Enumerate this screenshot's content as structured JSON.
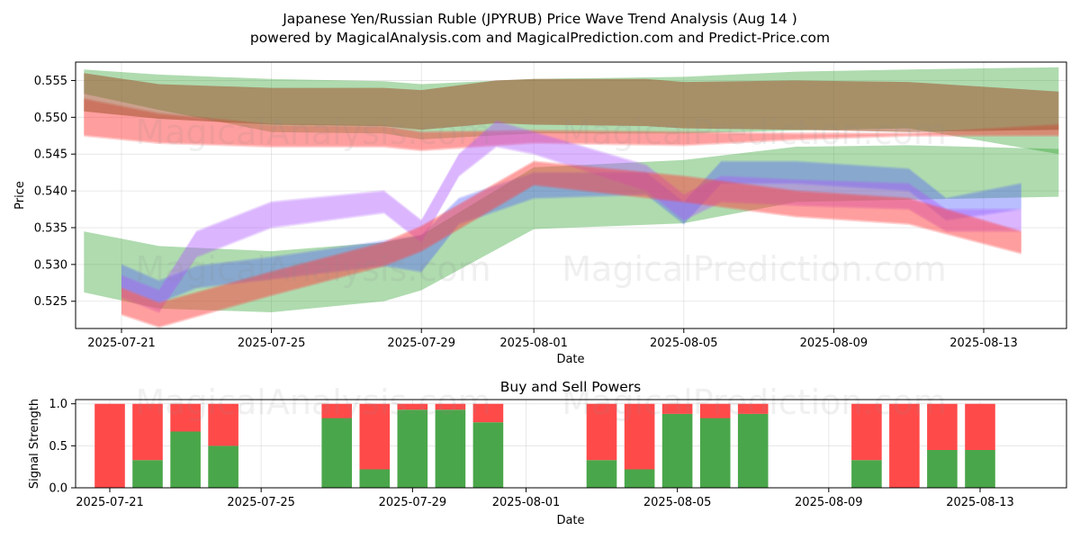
{
  "title_line1": "Japanese Yen/Russian Ruble (JPYRUB) Price Wave Trend Analysis (Aug 14 )",
  "title_line2": "powered by MagicalAnalysis.com and MagicalPrediction.com and Predict-Price.com",
  "watermarks": [
    "MagicalAnalysis.com",
    "MagicalPrediction.com"
  ],
  "colors": {
    "green": "#2ca02c",
    "red": "#ff4444",
    "blue": "#4f5bff",
    "purple": "#b05cff",
    "brown": "#a0522d",
    "bar_green": "#4aa64a",
    "bar_red": "#ff4a4a"
  },
  "chart_data": [
    {
      "type": "area",
      "xlabel": "Date",
      "ylabel": "Price",
      "ylim": [
        0.5213,
        0.5575
      ],
      "xlim": [
        "2025-07-20",
        "2025-08-15"
      ],
      "x_ticks": [
        "2025-07-21",
        "2025-07-25",
        "2025-07-29",
        "2025-08-01",
        "2025-08-05",
        "2025-08-09",
        "2025-08-13"
      ],
      "y_ticks": [
        "0.525",
        "0.530",
        "0.535",
        "0.540",
        "0.545",
        "0.550",
        "0.555"
      ],
      "grid": true,
      "series": [
        {
          "color": "green",
          "x": [
            "2025-07-20",
            "2025-07-22",
            "2025-07-25",
            "2025-07-28",
            "2025-07-29",
            "2025-08-01",
            "2025-08-05",
            "2025-08-08",
            "2025-08-11",
            "2025-08-15"
          ],
          "upper": [
            0.5565,
            0.5558,
            0.5552,
            0.5549,
            0.5545,
            0.5552,
            0.5555,
            0.5562,
            0.5565,
            0.5568
          ],
          "lower": [
            0.5532,
            0.551,
            0.548,
            0.5478,
            0.547,
            0.5478,
            0.5478,
            0.5482,
            0.5485,
            0.545
          ]
        },
        {
          "color": "red",
          "x": [
            "2025-07-20",
            "2025-07-22",
            "2025-07-25",
            "2025-07-28",
            "2025-07-29",
            "2025-08-01",
            "2025-08-05",
            "2025-08-08",
            "2025-08-11",
            "2025-08-15"
          ],
          "upper": [
            0.5525,
            0.5505,
            0.549,
            0.5488,
            0.548,
            0.5482,
            0.548,
            0.5478,
            0.5478,
            0.549
          ],
          "lower": [
            0.5475,
            0.5465,
            0.546,
            0.546,
            0.5455,
            0.5465,
            0.5462,
            0.547,
            0.5475,
            0.5475
          ]
        },
        {
          "color": "brown",
          "x": [
            "2025-07-20",
            "2025-07-22",
            "2025-07-25",
            "2025-07-28",
            "2025-07-29",
            "2025-07-31",
            "2025-08-01",
            "2025-08-04",
            "2025-08-05",
            "2025-08-08",
            "2025-08-11",
            "2025-08-15"
          ],
          "upper": [
            0.556,
            0.5545,
            0.554,
            0.554,
            0.5537,
            0.555,
            0.5552,
            0.5552,
            0.5548,
            0.555,
            0.5548,
            0.5535
          ],
          "lower": [
            0.5508,
            0.5498,
            0.549,
            0.5488,
            0.5483,
            0.5492,
            0.549,
            0.5488,
            0.5485,
            0.5483,
            0.548,
            0.5483
          ]
        },
        {
          "color": "green",
          "x": [
            "2025-07-20",
            "2025-07-22",
            "2025-07-25",
            "2025-07-28",
            "2025-07-29",
            "2025-08-01",
            "2025-08-05",
            "2025-08-08",
            "2025-08-11",
            "2025-08-15"
          ],
          "upper": [
            0.5345,
            0.5325,
            0.5318,
            0.533,
            0.534,
            0.5432,
            0.5442,
            0.546,
            0.5462,
            0.5457
          ],
          "lower": [
            0.5262,
            0.524,
            0.5235,
            0.525,
            0.5265,
            0.5348,
            0.5356,
            0.5385,
            0.5388,
            0.5392
          ]
        },
        {
          "color": "blue",
          "x": [
            "2025-07-21",
            "2025-07-22",
            "2025-07-23",
            "2025-07-25",
            "2025-07-28",
            "2025-07-29",
            "2025-07-30",
            "2025-08-01",
            "2025-08-04",
            "2025-08-05",
            "2025-08-06",
            "2025-08-08",
            "2025-08-11",
            "2025-08-12",
            "2025-08-14"
          ],
          "upper": [
            0.53,
            0.5278,
            0.5298,
            0.531,
            0.5332,
            0.534,
            0.539,
            0.5425,
            0.5425,
            0.5385,
            0.544,
            0.544,
            0.543,
            0.539,
            0.541
          ],
          "lower": [
            0.5268,
            0.5248,
            0.5268,
            0.528,
            0.5298,
            0.529,
            0.5355,
            0.539,
            0.5395,
            0.5355,
            0.541,
            0.541,
            0.54,
            0.536,
            0.5375
          ]
        },
        {
          "color": "purple",
          "x": [
            "2025-07-21",
            "2025-07-22",
            "2025-07-23",
            "2025-07-25",
            "2025-07-28",
            "2025-07-29",
            "2025-07-30",
            "2025-07-31",
            "2025-08-01",
            "2025-08-04",
            "2025-08-05",
            "2025-08-06",
            "2025-08-08",
            "2025-08-11",
            "2025-08-12",
            "2025-08-14"
          ],
          "upper": [
            0.5285,
            0.5265,
            0.5345,
            0.5385,
            0.54,
            0.536,
            0.545,
            0.5495,
            0.548,
            0.5435,
            0.5395,
            0.542,
            0.5415,
            0.541,
            0.5375,
            0.5375
          ],
          "lower": [
            0.5255,
            0.5235,
            0.531,
            0.535,
            0.537,
            0.533,
            0.542,
            0.546,
            0.545,
            0.54,
            0.536,
            0.5385,
            0.538,
            0.5375,
            0.5345,
            0.5345
          ]
        },
        {
          "color": "red",
          "x": [
            "2025-07-21",
            "2025-07-22",
            "2025-07-25",
            "2025-07-28",
            "2025-07-29",
            "2025-08-01",
            "2025-08-05",
            "2025-08-08",
            "2025-08-11",
            "2025-08-14"
          ],
          "upper": [
            0.5268,
            0.5248,
            0.529,
            0.533,
            0.5352,
            0.544,
            0.542,
            0.54,
            0.539,
            0.5345
          ],
          "lower": [
            0.5232,
            0.5215,
            0.5258,
            0.5298,
            0.5318,
            0.5408,
            0.5385,
            0.5365,
            0.5355,
            0.5315
          ]
        }
      ]
    },
    {
      "type": "bar",
      "title": "Buy and Sell Powers",
      "xlabel": "Date",
      "ylabel": "Signal Strength",
      "ylim": [
        0,
        1.05
      ],
      "x_ticks": [
        "2025-07-21",
        "2025-07-25",
        "2025-07-29",
        "2025-08-01",
        "2025-08-05",
        "2025-08-09",
        "2025-08-13"
      ],
      "y_ticks": [
        "0.0",
        "0.5",
        "1.0"
      ],
      "categories": [
        "2025-07-21",
        "2025-07-22",
        "2025-07-23",
        "2025-07-24",
        "2025-07-27",
        "2025-07-28",
        "2025-07-29",
        "2025-07-30",
        "2025-07-31",
        "2025-08-03",
        "2025-08-04",
        "2025-08-05",
        "2025-08-06",
        "2025-08-07",
        "2025-08-10",
        "2025-08-11",
        "2025-08-12",
        "2025-08-13"
      ],
      "series": [
        {
          "color": "bar_green",
          "values": [
            0.0,
            0.33,
            0.67,
            0.5,
            0.83,
            0.22,
            0.93,
            0.93,
            0.78,
            0.33,
            0.22,
            0.88,
            0.83,
            0.88,
            0.33,
            0.0,
            0.45,
            0.45
          ]
        },
        {
          "color": "bar_red",
          "values": [
            1.0,
            0.67,
            0.33,
            0.5,
            0.17,
            0.78,
            0.07,
            0.07,
            0.22,
            0.67,
            0.78,
            0.12,
            0.17,
            0.12,
            0.67,
            1.0,
            0.55,
            0.55
          ]
        }
      ]
    }
  ]
}
